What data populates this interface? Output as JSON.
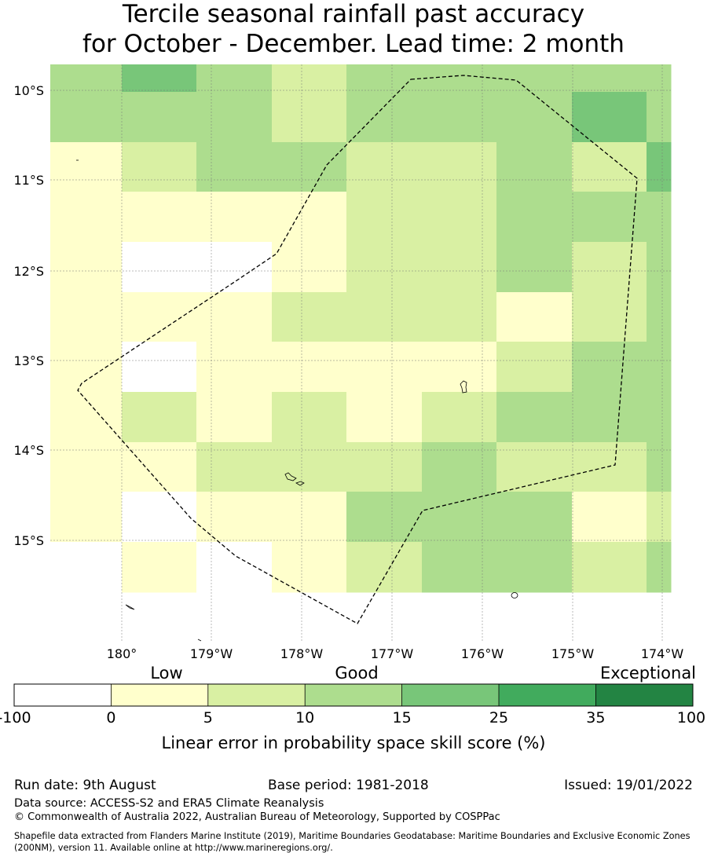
{
  "title": {
    "line1": "Tercile seasonal rainfall past accuracy",
    "line2": "for October - December. Lead time: 2 month"
  },
  "map": {
    "lon_labels": [
      "180°",
      "179°W",
      "178°W",
      "177°W",
      "176°W",
      "175°W",
      "174°W"
    ],
    "lat_labels": [
      "10°S",
      "11°S",
      "12°S",
      "13°S",
      "14°S",
      "15°S"
    ],
    "colors": {
      "white": "#ffffff",
      "pale_yellow": "#ffffcc",
      "light_green_yellow": "#d9f0a3",
      "light_green": "#addd8e",
      "medium_green": "#78c679",
      "green": "#41ab5d",
      "dark_green": "#238443"
    },
    "grid_categories": [
      [
        2,
        3,
        2,
        1,
        2,
        2,
        2,
        2,
        2
      ],
      [
        2,
        2,
        2,
        1,
        2,
        2,
        2,
        3,
        2
      ],
      [
        0,
        1,
        2,
        2,
        1,
        1,
        2,
        1,
        3
      ],
      [
        0,
        0,
        0,
        0,
        1,
        1,
        2,
        2,
        2
      ],
      [
        0,
        -1,
        -1,
        0,
        1,
        1,
        2,
        1,
        2
      ],
      [
        0,
        0,
        0,
        1,
        1,
        1,
        0,
        1,
        2
      ],
      [
        0,
        -1,
        0,
        0,
        0,
        0,
        1,
        2,
        2
      ],
      [
        0,
        1,
        0,
        1,
        0,
        1,
        2,
        2,
        2
      ],
      [
        0,
        0,
        1,
        1,
        1,
        2,
        1,
        1,
        2
      ],
      [
        0,
        -1,
        0,
        0,
        2,
        2,
        2,
        0,
        1
      ],
      [
        -1,
        0,
        -1,
        0,
        1,
        2,
        2,
        1,
        2
      ]
    ]
  },
  "legend": {
    "category_labels": [
      "Low",
      "Good",
      "Exceptional"
    ],
    "tick_labels": [
      "-100",
      "0",
      "5",
      "10",
      "15",
      "25",
      "35",
      "100"
    ],
    "axis_label": "Linear error in probability space skill score (%)"
  },
  "footer": {
    "run_date": "Run date: 9th August",
    "base_period": "Base period: 1981-2018",
    "issued": "Issued: 19/01/2022",
    "data_source": "Data source: ACCESS-S2 and ERA5 Climate Reanalysis",
    "copyright": "© Commonwealth of Australia 2022, Australian Bureau of Meteorology, Supported by COSPPac",
    "shapefile": "Shapefile data extracted from Flanders Marine Institute (2019), Maritime Boundaries Geodatabase: Maritime Boundaries and Exclusive Economic Zones (200NM), version 11. Available online at http://www.marineregions.org/."
  }
}
